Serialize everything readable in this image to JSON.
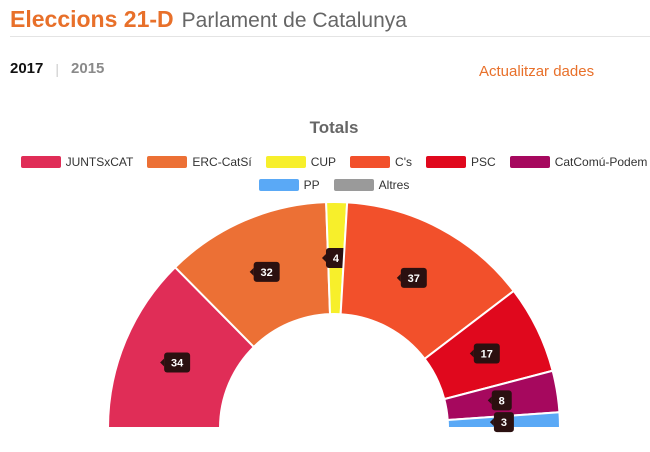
{
  "header": {
    "title": "Eleccions 21-D",
    "subtitle": "Parlament de Catalunya"
  },
  "years": {
    "active": "2017",
    "separator": "|",
    "inactive": "2015"
  },
  "refresh_label": "Actualitzar dades",
  "chart_data": {
    "type": "pie",
    "title": "Totals",
    "categories": [
      "JUNTSxCAT",
      "ERC-CatSí",
      "CUP",
      "C's",
      "PSC",
      "CatComú-Podem",
      "PP",
      "Altres"
    ],
    "values": [
      34,
      32,
      4,
      37,
      17,
      8,
      3,
      0
    ],
    "colors": [
      "#e02d57",
      "#ec7035",
      "#f7ef2b",
      "#f2502b",
      "#e0081d",
      "#a6085e",
      "#5aa9f6",
      "#9a9a9a"
    ],
    "legend_rows": [
      [
        0,
        1,
        2,
        3,
        4,
        5
      ],
      [
        6,
        7
      ]
    ],
    "legend_position": "top-center",
    "layout": "semicircle-donut"
  }
}
